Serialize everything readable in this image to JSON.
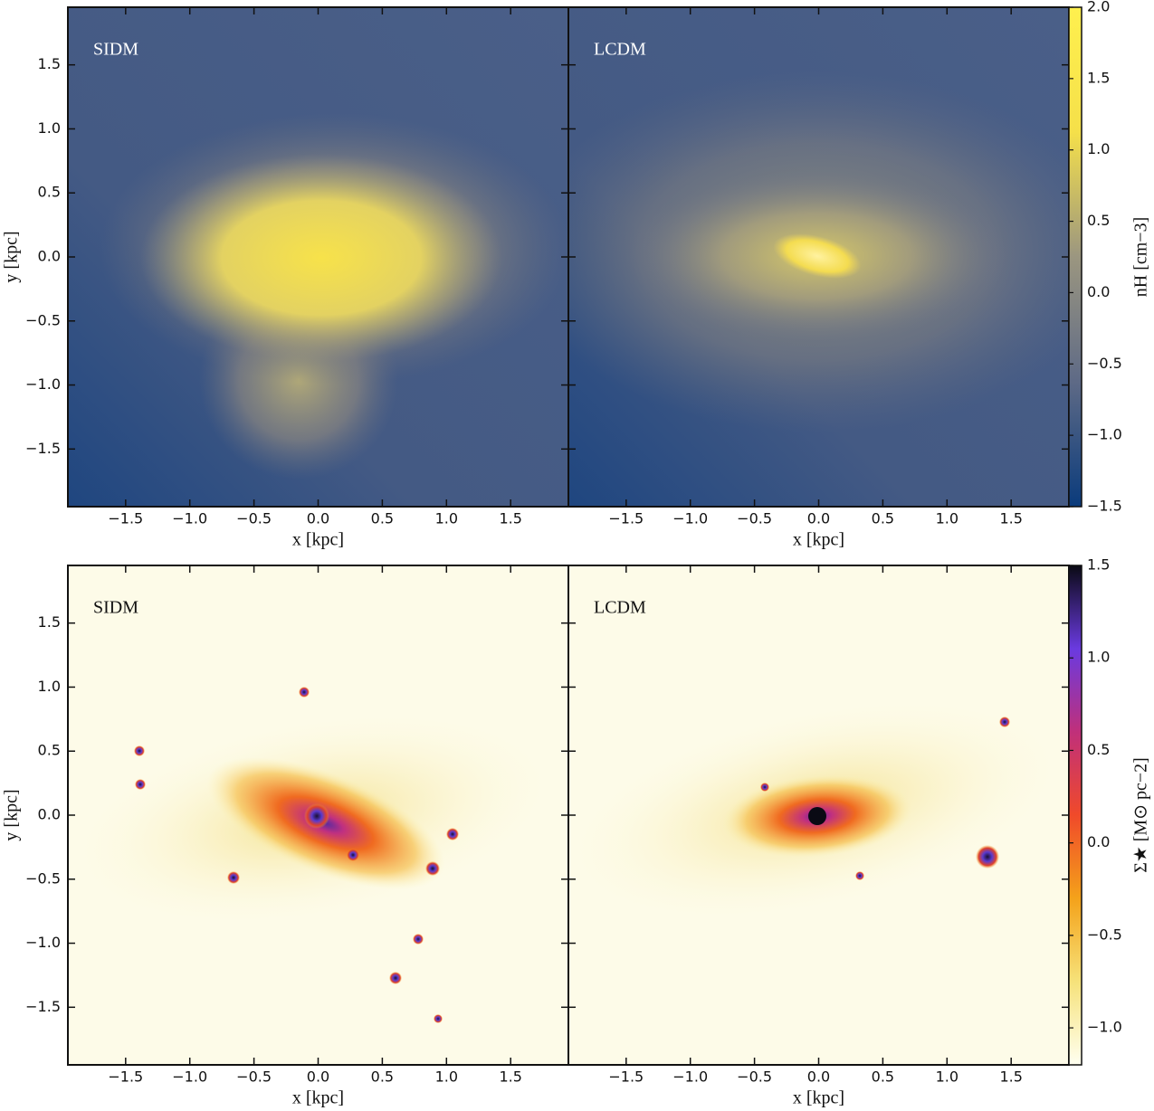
{
  "chart_data": [
    {
      "type": "image",
      "label": "SIDM",
      "xlabel": "x [kpc]",
      "ylabel": "y [kpc]",
      "xlim": [
        -1.95,
        1.95
      ],
      "ylim": [
        -1.95,
        1.95
      ],
      "xticks": [
        {
          "value": -1.5,
          "label": "−1.5"
        },
        {
          "value": -1,
          "label": "−1.0"
        },
        {
          "value": -0.5,
          "label": "−0.5"
        },
        {
          "value": 0,
          "label": "0.0"
        },
        0.5,
        {
          "value": 1,
          "label": "1.0"
        },
        1.5
      ],
      "yticks": [
        {
          "value": -1.5,
          "label": "−1.5"
        },
        {
          "value": -1,
          "label": "−1.0"
        },
        {
          "value": -0.5,
          "label": "−0.5"
        },
        {
          "value": 0,
          "label": "0.0"
        },
        0.5,
        {
          "value": 1,
          "label": "1.0"
        },
        1.5
      ]
    },
    {
      "type": "image",
      "label": "LCDM",
      "xlabel": "x [kpc]",
      "xlim": [
        -1.95,
        1.95
      ],
      "ylim": [
        -1.95,
        1.95
      ],
      "xticks": [
        {
          "value": -1.5,
          "label": "−1.5"
        },
        {
          "value": -1,
          "label": "−1.0"
        },
        {
          "value": -0.5,
          "label": "−0.5"
        },
        {
          "value": 0,
          "label": "0.0"
        },
        0.5,
        {
          "value": 1,
          "label": "1.0"
        },
        1.5
      ],
      "colorbar": {
        "label": "nH [cm−3]",
        "lim": [
          -1.5,
          2.0
        ],
        "cmap": [
          "#0a3b7c",
          "#5e6a86",
          "#9b9680",
          "#f5e04a",
          "#fff04e"
        ],
        "ticks": [
          {
            "value": -1.5,
            "label": "−1.5"
          },
          {
            "value": -1,
            "label": "−1.0"
          },
          {
            "value": -0.5,
            "label": "−0.5"
          },
          {
            "value": 0,
            "label": "0.0"
          },
          0.5,
          {
            "value": 1,
            "label": "1.0"
          },
          1.5,
          {
            "value": 2,
            "label": "2.0"
          }
        ]
      }
    },
    {
      "type": "image",
      "label": "SIDM",
      "xlabel": "x [kpc]",
      "ylabel": "y [kpc]",
      "xlim": [
        -1.95,
        1.95
      ],
      "ylim": [
        -1.95,
        1.95
      ],
      "xticks": [
        {
          "value": -1.5,
          "label": "−1.5"
        },
        {
          "value": -1,
          "label": "−1.0"
        },
        {
          "value": -0.5,
          "label": "−0.5"
        },
        {
          "value": 0,
          "label": "0.0"
        },
        0.5,
        {
          "value": 1,
          "label": "1.0"
        },
        1.5
      ],
      "yticks": [
        {
          "value": -1.5,
          "label": "−1.5"
        },
        {
          "value": -1,
          "label": "−1.0"
        },
        {
          "value": -0.5,
          "label": "−0.5"
        },
        {
          "value": 0,
          "label": "0.0"
        },
        0.5,
        {
          "value": 1,
          "label": "1.0"
        },
        1.5
      ]
    },
    {
      "type": "image",
      "label": "LCDM",
      "xlabel": "x [kpc]",
      "xlim": [
        -1.95,
        1.95
      ],
      "ylim": [
        -1.95,
        1.95
      ],
      "xticks": [
        {
          "value": -1.5,
          "label": "−1.5"
        },
        {
          "value": -1,
          "label": "−1.0"
        },
        {
          "value": -0.5,
          "label": "−0.5"
        },
        {
          "value": 0,
          "label": "0.0"
        },
        0.5,
        {
          "value": 1,
          "label": "1.0"
        },
        1.5
      ],
      "colorbar": {
        "label": "Σ★ [M⊙ pc−2]",
        "lim": [
          -1.2,
          1.5
        ],
        "cmap": [
          "#fffff0",
          "#f6e27a",
          "#f4a21a",
          "#f04a2a",
          "#c0307a",
          "#6a3ae0",
          "#0a0a14"
        ],
        "ticks": [
          {
            "value": -1,
            "label": "−1.0"
          },
          {
            "value": -0.5,
            "label": "−0.5"
          },
          {
            "value": 0,
            "label": "0.0"
          },
          0.5,
          {
            "value": 1,
            "label": "1.0"
          },
          1.5
        ]
      }
    }
  ]
}
